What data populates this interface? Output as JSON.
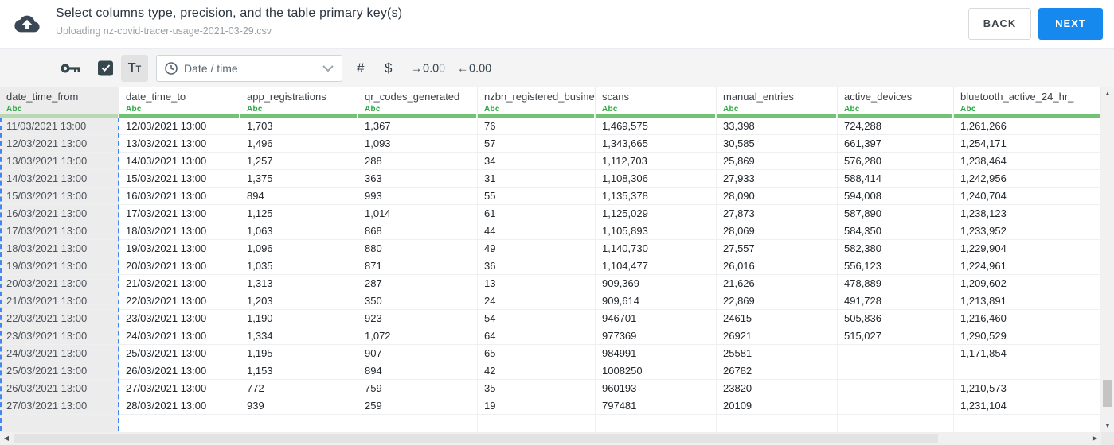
{
  "header": {
    "title": "Select columns type, precision, and the table primary key(s)",
    "subtitle": "Uploading nz-covid-tracer-usage-2021-03-29.csv",
    "buttons": {
      "back": "BACK",
      "next": "NEXT"
    }
  },
  "toolbar": {
    "text_type_label": "Tt",
    "type_dropdown_value": "Date / time",
    "number_type_label": "#",
    "currency_type_label": "$",
    "precision_add": {
      "arrow": "→",
      "digits_dark": "0.0",
      "digits_faded": "0"
    },
    "precision_remove": {
      "arrow": "←",
      "digits": "0.00"
    }
  },
  "table": {
    "type_label": "Abc",
    "selected_column": "date_time_from",
    "columns": [
      "date_time_from",
      "date_time_to",
      "app_registrations",
      "qr_codes_generated",
      "nzbn_registered_busine",
      "scans",
      "manual_entries",
      "active_devices",
      "bluetooth_active_24_hr_"
    ],
    "rows": [
      [
        "11/03/2021 13:00",
        "12/03/2021 13:00",
        "1,703",
        "1,367",
        "76",
        "1,469,575",
        "33,398",
        "724,288",
        "1,261,266"
      ],
      [
        "12/03/2021 13:00",
        "13/03/2021 13:00",
        "1,496",
        "1,093",
        "57",
        "1,343,665",
        "30,585",
        "661,397",
        "1,254,171"
      ],
      [
        "13/03/2021 13:00",
        "14/03/2021 13:00",
        "1,257",
        "288",
        "34",
        "1,112,703",
        "25,869",
        "576,280",
        "1,238,464"
      ],
      [
        "14/03/2021 13:00",
        "15/03/2021 13:00",
        "1,375",
        "363",
        "31",
        "1,108,306",
        "27,933",
        "588,414",
        "1,242,956"
      ],
      [
        "15/03/2021 13:00",
        "16/03/2021 13:00",
        "894",
        "993",
        "55",
        "1,135,378",
        "28,090",
        "594,008",
        "1,240,704"
      ],
      [
        "16/03/2021 13:00",
        "17/03/2021 13:00",
        "1,125",
        "1,014",
        "61",
        "1,125,029",
        "27,873",
        "587,890",
        "1,238,123"
      ],
      [
        "17/03/2021 13:00",
        "18/03/2021 13:00",
        "1,063",
        "868",
        "44",
        "1,105,893",
        "28,069",
        "584,350",
        "1,233,952"
      ],
      [
        "18/03/2021 13:00",
        "19/03/2021 13:00",
        "1,096",
        "880",
        "49",
        "1,140,730",
        "27,557",
        "582,380",
        "1,229,904"
      ],
      [
        "19/03/2021 13:00",
        "20/03/2021 13:00",
        "1,035",
        "871",
        "36",
        "1,104,477",
        "26,016",
        "556,123",
        "1,224,961"
      ],
      [
        "20/03/2021 13:00",
        "21/03/2021 13:00",
        "1,313",
        "287",
        "13",
        "909,369",
        "21,626",
        "478,889",
        "1,209,602"
      ],
      [
        "21/03/2021 13:00",
        "22/03/2021 13:00",
        "1,203",
        "350",
        "24",
        "909,614",
        "22,869",
        "491,728",
        "1,213,891"
      ],
      [
        "22/03/2021 13:00",
        "23/03/2021 13:00",
        "1,190",
        "923",
        "54",
        "946701",
        "24615",
        "505,836",
        "1,216,460"
      ],
      [
        "23/03/2021 13:00",
        "24/03/2021 13:00",
        "1,334",
        "1,072",
        "64",
        "977369",
        "26921",
        "515,027",
        "1,290,529"
      ],
      [
        "24/03/2021 13:00",
        "25/03/2021 13:00",
        "1,195",
        "907",
        "65",
        "984991",
        "25581",
        "",
        "1,171,854"
      ],
      [
        "25/03/2021 13:00",
        "26/03/2021 13:00",
        "1,153",
        "894",
        "42",
        "1008250",
        "26782",
        "",
        ""
      ],
      [
        "26/03/2021 13:00",
        "27/03/2021 13:00",
        "772",
        "759",
        "35",
        "960193",
        "23820",
        "",
        "1,210,573"
      ],
      [
        "27/03/2021 13:00",
        "28/03/2021 13:00",
        "939",
        "259",
        "19",
        "797481",
        "20109",
        "",
        "1,231,104"
      ]
    ]
  },
  "colors": {
    "accent_blue": "#1589ee",
    "type_green": "#27a93f",
    "header_bar_green": "#74c374",
    "selected_bar_green": "#b8d8b4",
    "selection_dash_blue": "#4285f4",
    "icon_dark": "#37474f"
  }
}
